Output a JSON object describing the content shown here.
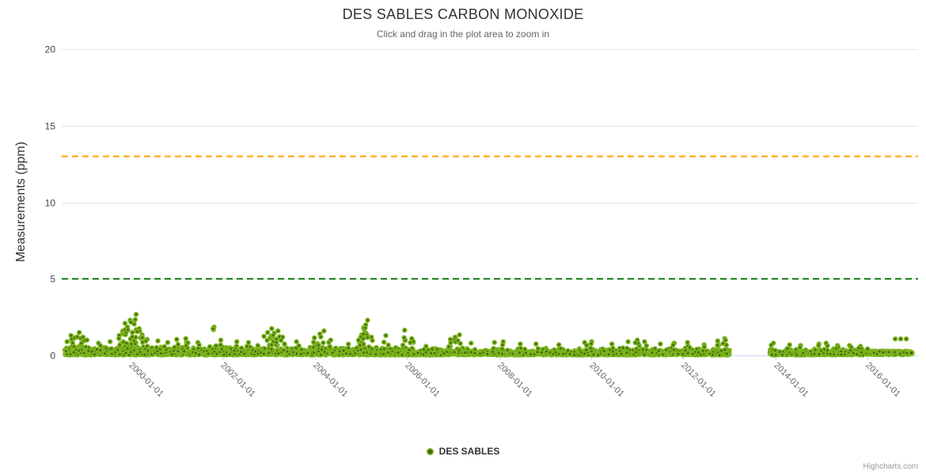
{
  "title": "DES SABLES CARBON MONOXIDE",
  "subtitle": "Click and drag in the plot area to zoom in",
  "credits_label": "Highcharts.com",
  "legend": {
    "series_label": "DES SABLES"
  },
  "colors": {
    "title": "#333333",
    "subtitle": "#666666",
    "y_label": "#444444",
    "x_label": "#666666",
    "grid": "#e6e6e6",
    "axis_line": "#ccd6eb",
    "tick": "#ccd6eb",
    "point_fill": "#7CB41E",
    "point_core": "#3D6508",
    "plotline_orange": "#FFA100",
    "plotline_green": "#107A10",
    "legend_text": "#333333",
    "credits": "#999999"
  },
  "chart_data": {
    "type": "scatter",
    "title": "DES SABLES CARBON MONOXIDE",
    "subtitle": "Click and drag in the plot area to zoom in",
    "xlabel": "",
    "ylabel": "Measurements (ppm)",
    "x_axis_type": "datetime",
    "x_tick_labels": [
      "2000-01-01",
      "2002-01-01",
      "2004-01-01",
      "2006-01-01",
      "2008-01-01",
      "2010-01-01",
      "2012-01-01",
      "2014-01-01",
      "2016-01-01"
    ],
    "x_tick_years": [
      2000,
      2002,
      2004,
      2006,
      2008,
      2010,
      2012,
      2014,
      2016
    ],
    "x_range_years": [
      1998.55,
      2017.15
    ],
    "ylim": [
      0,
      20
    ],
    "y_ticks": [
      0,
      5,
      10,
      15,
      20
    ],
    "grid": "horizontal-only",
    "legend_position": "bottom-center",
    "plot_lines": [
      {
        "value": 13,
        "style": "dashed",
        "color_key": "plotline_orange"
      },
      {
        "value": 5,
        "style": "dashed",
        "color_key": "plotline_green"
      }
    ],
    "series": [
      {
        "name": "DES SABLES",
        "marker": "circle-with-dark-core"
      }
    ],
    "data_description": "Dense hourly CO readings 1998.6-2016.9, mostly 0-0.8 ppm with episodic spikes to ~2.7 ppm (max ~2000.1); measurement gap 2013.0-2013.9; flat near-zero strip 2016.0-2016.9. All points stay far below warning plot-lines at 5 and 13 ppm.",
    "scatter_spec": {
      "seed": 42,
      "marker_radius": 3.2,
      "segments": [
        {
          "from": 1998.57,
          "to": 2006.0,
          "per_year": 210,
          "base": 0.03,
          "sigma": 0.21,
          "cap": 0.95,
          "uniform": false
        },
        {
          "from": 2006.0,
          "to": 2013.0,
          "per_year": 205,
          "base": 0.03,
          "sigma": 0.16,
          "cap": 0.72,
          "uniform": false
        },
        {
          "from": 2013.88,
          "to": 2016.02,
          "per_year": 205,
          "base": 0.03,
          "sigma": 0.15,
          "cap": 0.68,
          "uniform": false
        },
        {
          "from": 2016.02,
          "to": 2016.93,
          "per_year": 280,
          "base": 0.05,
          "sigma": 0.0,
          "cap": 0.28,
          "uniform": true
        }
      ],
      "peaks": [
        [
          1998.62,
          0.9
        ],
        [
          1998.7,
          1.3
        ],
        [
          1998.78,
          1.15
        ],
        [
          1998.88,
          1.5
        ],
        [
          1998.96,
          1.2
        ],
        [
          1999.05,
          1.0
        ],
        [
          1999.3,
          0.8
        ],
        [
          1999.55,
          0.9
        ],
        [
          1999.75,
          1.3
        ],
        [
          1999.82,
          1.6
        ],
        [
          1999.88,
          2.1
        ],
        [
          1999.93,
          1.85
        ],
        [
          1999.98,
          2.3
        ],
        [
          2000.03,
          1.5
        ],
        [
          2000.08,
          2.05
        ],
        [
          2000.12,
          2.68
        ],
        [
          2000.18,
          1.75
        ],
        [
          2000.25,
          1.35
        ],
        [
          2000.35,
          1.05
        ],
        [
          2000.6,
          0.95
        ],
        [
          2000.8,
          0.85
        ],
        [
          2001.0,
          1.05
        ],
        [
          2001.2,
          1.1
        ],
        [
          2001.45,
          0.85
        ],
        [
          2001.82,
          1.85
        ],
        [
          2001.95,
          1.0
        ],
        [
          2002.3,
          0.9
        ],
        [
          2002.55,
          0.85
        ],
        [
          2002.9,
          1.25
        ],
        [
          2002.98,
          1.5
        ],
        [
          2003.06,
          1.75
        ],
        [
          2003.12,
          1.45
        ],
        [
          2003.2,
          1.6
        ],
        [
          2003.3,
          1.2
        ],
        [
          2003.6,
          0.9
        ],
        [
          2004.0,
          1.15
        ],
        [
          2004.1,
          1.4
        ],
        [
          2004.2,
          1.6
        ],
        [
          2004.35,
          1.0
        ],
        [
          2004.95,
          1.0
        ],
        [
          2005.02,
          1.35
        ],
        [
          2005.07,
          1.7
        ],
        [
          2005.1,
          2.0
        ],
        [
          2005.14,
          2.3
        ],
        [
          2005.22,
          1.2
        ],
        [
          2005.55,
          1.3
        ],
        [
          2005.95,
          1.65
        ],
        [
          2006.1,
          1.1
        ],
        [
          2006.95,
          1.05
        ],
        [
          2007.05,
          1.2
        ],
        [
          2007.15,
          1.35
        ],
        [
          2007.4,
          0.8
        ],
        [
          2007.9,
          0.85
        ],
        [
          2008.1,
          0.9
        ],
        [
          2008.45,
          0.75
        ],
        [
          2008.8,
          0.75
        ],
        [
          2009.3,
          0.7
        ],
        [
          2009.85,
          0.85
        ],
        [
          2010.0,
          0.9
        ],
        [
          2010.45,
          0.75
        ],
        [
          2010.8,
          0.9
        ],
        [
          2011.0,
          1.0
        ],
        [
          2011.15,
          0.9
        ],
        [
          2011.5,
          0.75
        ],
        [
          2011.8,
          0.8
        ],
        [
          2012.1,
          0.85
        ],
        [
          2012.45,
          0.7
        ],
        [
          2012.75,
          0.95
        ],
        [
          2012.9,
          1.1
        ],
        [
          2013.95,
          0.8
        ],
        [
          2014.3,
          0.7
        ],
        [
          2014.55,
          0.65
        ],
        [
          2014.95,
          0.75
        ],
        [
          2015.1,
          0.8
        ],
        [
          2015.35,
          0.65
        ],
        [
          2015.6,
          0.65
        ],
        [
          2015.85,
          0.6
        ]
      ],
      "isolated_points": [
        [
          2016.0,
          0.42,
          3.4
        ],
        [
          2016.6,
          1.08,
          3.2
        ],
        [
          2016.72,
          1.08,
          3.2
        ],
        [
          2016.84,
          1.08,
          3.2
        ],
        [
          2016.95,
          0.16,
          4.2
        ]
      ]
    }
  }
}
